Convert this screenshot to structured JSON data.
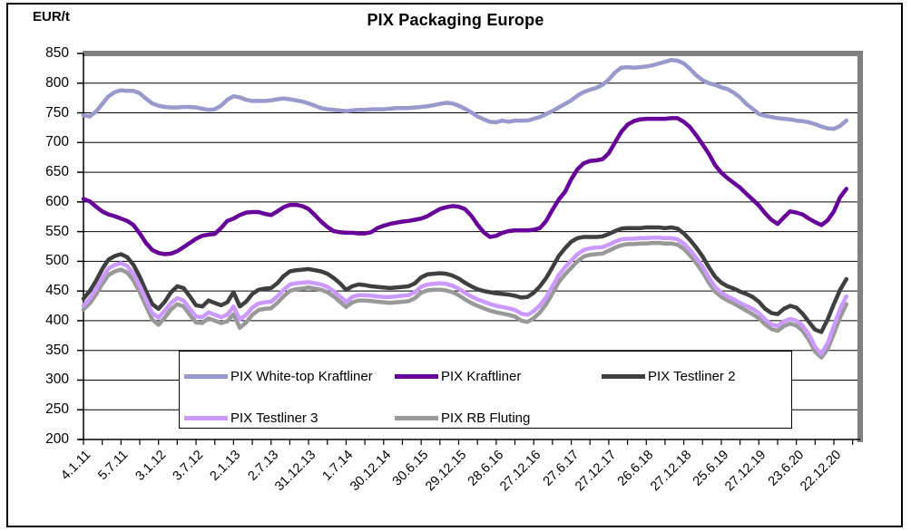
{
  "chart_data": {
    "type": "line",
    "title": "PIX Packaging Europe",
    "ylabel": "EUR/t",
    "ylim": [
      200,
      850
    ],
    "grid": "horizontal",
    "legend_position": "bottom-inside-box",
    "y_ticks": [
      850,
      800,
      750,
      700,
      650,
      600,
      550,
      500,
      450,
      400,
      350,
      300,
      250,
      200
    ],
    "x_tick_labels": [
      "4.1.11",
      "5.7.11",
      "3.1.12",
      "3.7.12",
      "2.1.13",
      "2.7.13",
      "31.12.13",
      "1.7.14",
      "30.12.14",
      "30.6.15",
      "29.12.15",
      "28.6.16",
      "27.12.16",
      "27.6.17",
      "27.12.17",
      "26.6.18",
      "27.12.18",
      "25.6.19",
      "27.12.19",
      "23.6.20",
      "22.12.20"
    ],
    "x_unit": "monthly points, index 0 = 4.1.11, one x-axis label every 6 months",
    "series": [
      {
        "name": "PIX White-top Kraftliner",
        "color": "#9999CC",
        "values": [
          746,
          744,
          752,
          765,
          778,
          785,
          788,
          787,
          787,
          783,
          774,
          766,
          762,
          760,
          759,
          759,
          760,
          760,
          759,
          757,
          755,
          756,
          762,
          772,
          778,
          776,
          772,
          770,
          770,
          770,
          771,
          773,
          774,
          773,
          771,
          769,
          766,
          762,
          758,
          756,
          755,
          754,
          753,
          754,
          755,
          755,
          756,
          756,
          756,
          757,
          758,
          758,
          758,
          759,
          760,
          761,
          763,
          765,
          767,
          766,
          762,
          757,
          751,
          744,
          739,
          735,
          734,
          737,
          735,
          737,
          737,
          737,
          740,
          743,
          748,
          753,
          759,
          765,
          771,
          779,
          785,
          789,
          792,
          797,
          806,
          818,
          826,
          827,
          826,
          827,
          828,
          830,
          833,
          836,
          839,
          838,
          833,
          824,
          813,
          805,
          800,
          797,
          793,
          790,
          784,
          776,
          765,
          757,
          748,
          745,
          743,
          741,
          740,
          739,
          737,
          736,
          734,
          731,
          727,
          724,
          723,
          728,
          737
        ]
      },
      {
        "name": "PIX Kraftliner",
        "color": "#660099",
        "values": [
          605,
          601,
          592,
          584,
          579,
          576,
          572,
          568,
          561,
          547,
          531,
          519,
          514,
          512,
          513,
          517,
          524,
          531,
          538,
          543,
          545,
          546,
          556,
          568,
          572,
          578,
          582,
          583,
          583,
          580,
          578,
          584,
          591,
          595,
          595,
          593,
          588,
          578,
          567,
          558,
          551,
          549,
          548,
          548,
          547,
          547,
          549,
          556,
          560,
          563,
          565,
          567,
          568,
          570,
          572,
          576,
          582,
          588,
          591,
          593,
          592,
          588,
          577,
          562,
          549,
          541,
          543,
          548,
          551,
          552,
          552,
          552,
          553,
          556,
          568,
          587,
          604,
          617,
          638,
          655,
          665,
          669,
          670,
          672,
          682,
          700,
          718,
          730,
          736,
          739,
          740,
          740,
          740,
          740,
          741,
          741,
          735,
          726,
          712,
          697,
          681,
          662,
          649,
          640,
          632,
          624,
          614,
          604,
          594,
          581,
          570,
          563,
          574,
          584,
          582,
          579,
          572,
          566,
          561,
          569,
          584,
          608,
          622
        ]
      },
      {
        "name": "PIX Testliner 2",
        "color": "#3F3F3F",
        "values": [
          437,
          450,
          467,
          487,
          503,
          509,
          512,
          507,
          494,
          474,
          450,
          428,
          420,
          432,
          448,
          458,
          455,
          441,
          426,
          424,
          434,
          430,
          426,
          431,
          448,
          424,
          432,
          445,
          452,
          454,
          455,
          463,
          475,
          483,
          485,
          486,
          487,
          485,
          483,
          479,
          472,
          463,
          452,
          458,
          461,
          460,
          458,
          457,
          456,
          455,
          456,
          457,
          458,
          463,
          473,
          478,
          479,
          480,
          479,
          476,
          471,
          464,
          458,
          453,
          450,
          448,
          446,
          445,
          444,
          442,
          439,
          440,
          447,
          458,
          472,
          490,
          509,
          522,
          533,
          539,
          541,
          541,
          541,
          542,
          546,
          551,
          555,
          556,
          556,
          556,
          557,
          557,
          557,
          556,
          557,
          555,
          547,
          536,
          523,
          508,
          490,
          474,
          464,
          458,
          454,
          449,
          445,
          440,
          432,
          420,
          413,
          411,
          420,
          425,
          422,
          412,
          398,
          385,
          381,
          402,
          428,
          452,
          470
        ]
      },
      {
        "name": "PIX Testliner 3",
        "color": "#CC99FF",
        "values": [
          425,
          437,
          453,
          472,
          488,
          494,
          497,
          492,
          479,
          459,
          436,
          413,
          405,
          417,
          430,
          438,
          434,
          420,
          407,
          406,
          414,
          410,
          406,
          410,
          424,
          402,
          410,
          422,
          429,
          431,
          432,
          441,
          452,
          461,
          463,
          464,
          465,
          463,
          461,
          457,
          450,
          441,
          432,
          440,
          443,
          443,
          442,
          441,
          440,
          440,
          441,
          442,
          443,
          448,
          457,
          461,
          462,
          463,
          462,
          459,
          454,
          447,
          441,
          436,
          432,
          428,
          425,
          423,
          421,
          418,
          412,
          410,
          416,
          426,
          440,
          458,
          477,
          490,
          501,
          512,
          519,
          522,
          523,
          524,
          528,
          533,
          537,
          538,
          538,
          539,
          539,
          540,
          540,
          539,
          539,
          537,
          530,
          519,
          506,
          491,
          473,
          457,
          447,
          441,
          436,
          430,
          425,
          420,
          413,
          402,
          394,
          391,
          399,
          403,
          400,
          392,
          377,
          356,
          344,
          362,
          391,
          420,
          441
        ]
      },
      {
        "name": "PIX RB Fluting",
        "color": "#999999",
        "values": [
          419,
          429,
          444,
          462,
          477,
          483,
          486,
          481,
          468,
          448,
          425,
          402,
          393,
          405,
          419,
          428,
          424,
          410,
          397,
          396,
          404,
          400,
          396,
          399,
          411,
          388,
          397,
          410,
          418,
          420,
          421,
          430,
          441,
          450,
          453,
          454,
          456,
          454,
          452,
          448,
          441,
          432,
          423,
          431,
          434,
          434,
          433,
          432,
          431,
          430,
          431,
          432,
          433,
          438,
          447,
          451,
          452,
          452,
          451,
          448,
          443,
          436,
          430,
          425,
          421,
          417,
          414,
          412,
          410,
          407,
          400,
          398,
          404,
          414,
          428,
          446,
          465,
          478,
          489,
          500,
          508,
          511,
          512,
          513,
          518,
          523,
          527,
          529,
          529,
          530,
          530,
          531,
          531,
          530,
          530,
          528,
          521,
          510,
          497,
          482,
          464,
          449,
          440,
          434,
          429,
          423,
          417,
          411,
          404,
          394,
          386,
          383,
          391,
          395,
          392,
          383,
          368,
          348,
          338,
          352,
          378,
          406,
          428
        ]
      }
    ],
    "plot_border_color": "#808080",
    "gridline_color": "#000000"
  }
}
